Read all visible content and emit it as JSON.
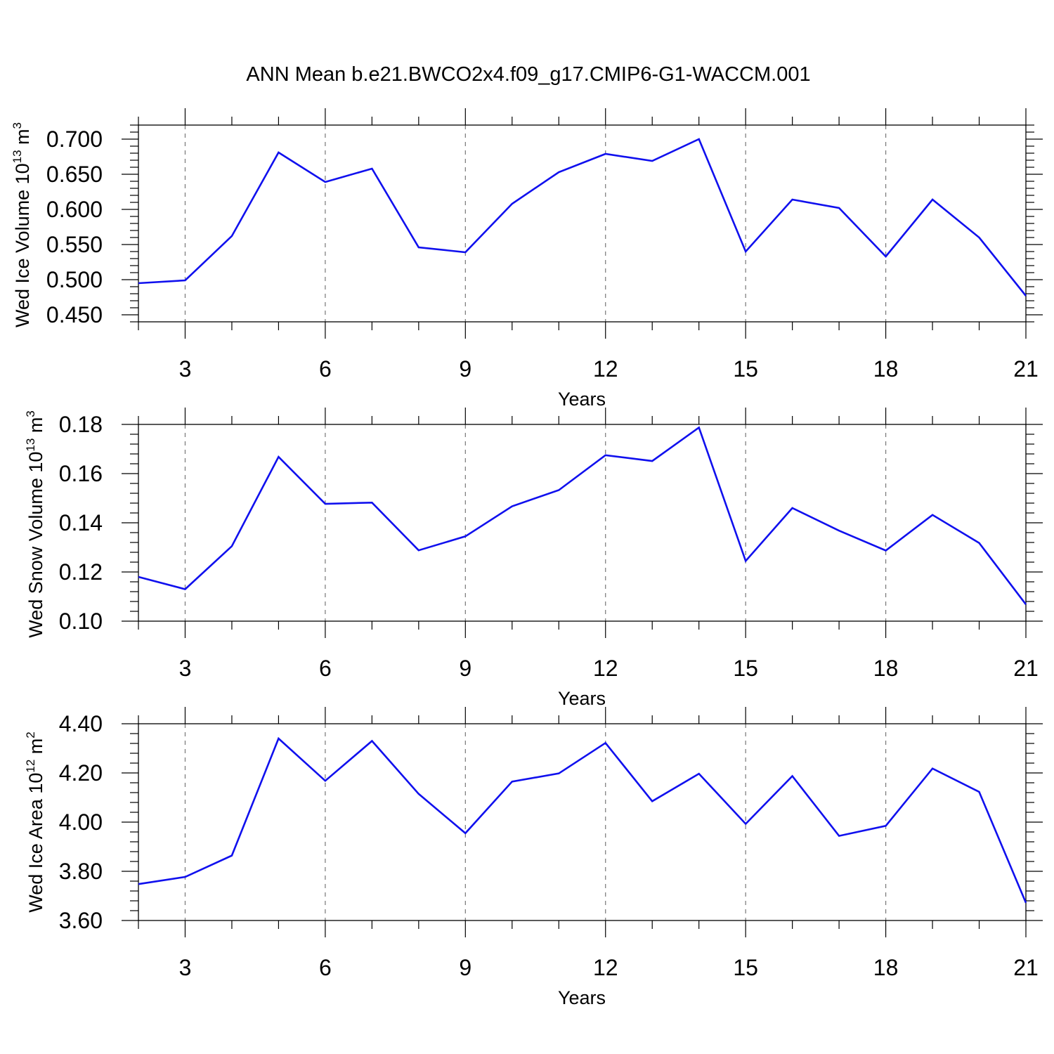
{
  "title": "ANN Mean b.e21.BWCO2x4.f09_g17.CMIP6-G1-WACCM.001",
  "colors": {
    "line": "#1010ee",
    "axis": "#000000",
    "grid": "#777777"
  },
  "chart_data": [
    {
      "type": "line",
      "xlabel": "Years",
      "ylabel": "Wed Ice Volume 10",
      "ylabel_exp": "13",
      "ylabel_unit": "m",
      "ylabel_unit_exp": "3",
      "xlim": [
        2,
        21
      ],
      "ylim": [
        0.44,
        0.72
      ],
      "xticks": [
        3,
        6,
        9,
        12,
        15,
        18,
        21
      ],
      "xtick_labels": [
        "3",
        "6",
        "9",
        "12",
        "15",
        "18",
        "21"
      ],
      "yticks": [
        0.45,
        0.5,
        0.55,
        0.6,
        0.65,
        0.7
      ],
      "ytick_labels": [
        "0.450",
        "0.500",
        "0.550",
        "0.600",
        "0.650",
        "0.700"
      ],
      "grid": "vertical dashed at major x ticks",
      "series": [
        {
          "x": [
            2,
            3,
            4,
            5,
            6,
            7,
            8,
            9,
            10,
            11,
            12,
            13,
            14,
            15,
            16,
            17,
            18,
            19,
            20,
            21
          ],
          "values": [
            0.495,
            0.499,
            0.562,
            0.681,
            0.639,
            0.658,
            0.546,
            0.539,
            0.608,
            0.653,
            0.679,
            0.669,
            0.7,
            0.54,
            0.614,
            0.602,
            0.533,
            0.614,
            0.56,
            0.477
          ]
        }
      ]
    },
    {
      "type": "line",
      "xlabel": "Years",
      "ylabel": "Wed Snow Volume 10",
      "ylabel_exp": "13",
      "ylabel_unit": "m",
      "ylabel_unit_exp": "3",
      "xlim": [
        2,
        21
      ],
      "ylim": [
        0.1,
        0.18
      ],
      "xticks": [
        3,
        6,
        9,
        12,
        15,
        18,
        21
      ],
      "xtick_labels": [
        "3",
        "6",
        "9",
        "12",
        "15",
        "18",
        "21"
      ],
      "yticks": [
        0.1,
        0.12,
        0.14,
        0.16,
        0.18
      ],
      "ytick_labels": [
        "0.10",
        "0.12",
        "0.14",
        "0.16",
        "0.18"
      ],
      "grid": "vertical dashed at major x ticks",
      "series": [
        {
          "x": [
            2,
            3,
            4,
            5,
            6,
            7,
            8,
            9,
            10,
            11,
            12,
            13,
            14,
            15,
            16,
            17,
            18,
            19,
            20,
            21
          ],
          "values": [
            0.118,
            0.113,
            0.1305,
            0.1668,
            0.1477,
            0.1482,
            0.1288,
            0.1345,
            0.1467,
            0.1533,
            0.1675,
            0.1651,
            0.1787,
            0.1245,
            0.146,
            0.1368,
            0.1287,
            0.1432,
            0.1318,
            0.1068
          ]
        }
      ]
    },
    {
      "type": "line",
      "xlabel": "Years",
      "ylabel": "Wed Ice Area 10",
      "ylabel_exp": "12",
      "ylabel_unit": "m",
      "ylabel_unit_exp": "2",
      "xlim": [
        2,
        21
      ],
      "ylim": [
        3.6,
        4.4
      ],
      "xticks": [
        3,
        6,
        9,
        12,
        15,
        18,
        21
      ],
      "xtick_labels": [
        "3",
        "6",
        "9",
        "12",
        "15",
        "18",
        "21"
      ],
      "yticks": [
        3.6,
        3.8,
        4.0,
        4.2,
        4.4
      ],
      "ytick_labels": [
        "3.60",
        "3.80",
        "4.00",
        "4.20",
        "4.40"
      ],
      "grid": "vertical dashed at major x ticks",
      "series": [
        {
          "x": [
            2,
            3,
            4,
            5,
            6,
            7,
            8,
            9,
            10,
            11,
            12,
            13,
            14,
            15,
            16,
            17,
            18,
            19,
            20,
            21
          ],
          "values": [
            3.748,
            3.777,
            3.864,
            4.34,
            4.168,
            4.33,
            4.115,
            3.955,
            4.165,
            4.198,
            4.322,
            4.085,
            4.197,
            3.993,
            4.187,
            3.944,
            3.985,
            4.218,
            4.123,
            3.672
          ]
        }
      ]
    }
  ]
}
